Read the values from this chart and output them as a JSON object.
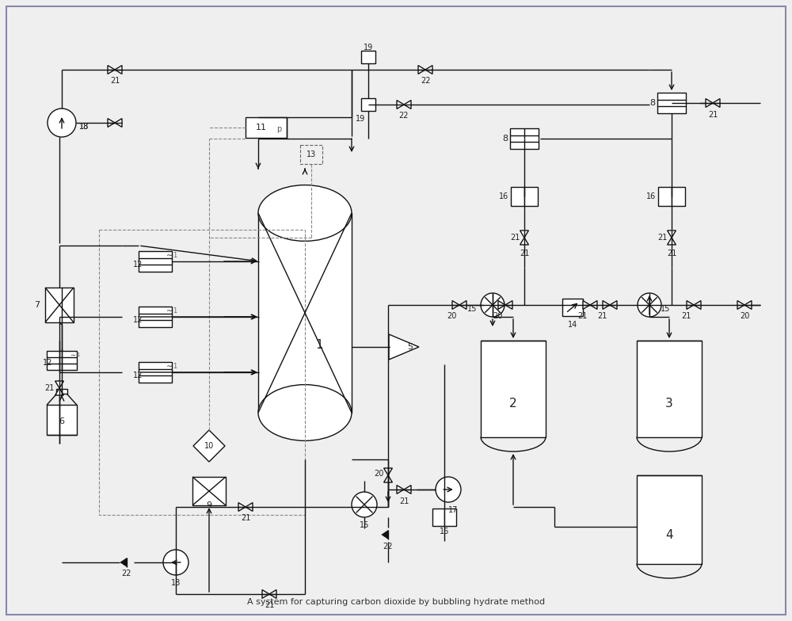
{
  "figsize": [
    10.0,
    7.84
  ],
  "dpi": 100,
  "bg_color": "#f0eff0",
  "border_color": "#8888aa",
  "line_color": "#111111",
  "lw": 1.0
}
